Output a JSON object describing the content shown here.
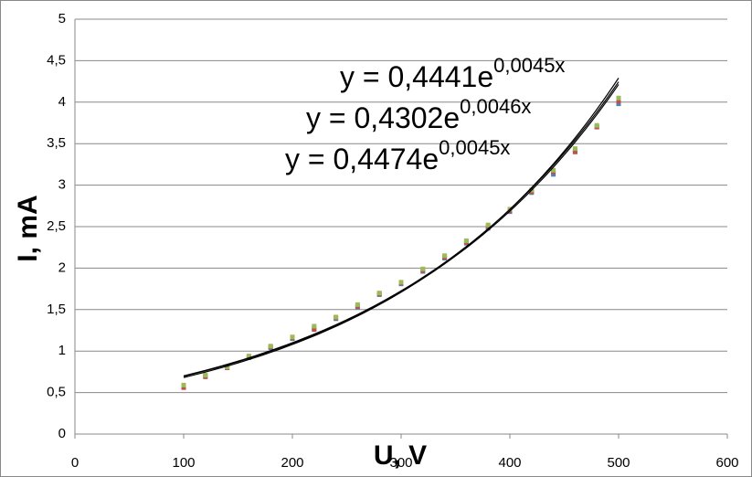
{
  "chart_data": {
    "type": "scatter",
    "x": [
      100,
      120,
      140,
      160,
      180,
      200,
      220,
      240,
      260,
      280,
      300,
      320,
      340,
      360,
      380,
      400,
      420,
      440,
      460,
      480,
      500
    ],
    "series": [
      {
        "color": "#4f81bd",
        "values": [
          0.57,
          0.7,
          0.8,
          0.92,
          1.04,
          1.15,
          1.27,
          1.39,
          1.53,
          1.68,
          1.81,
          1.96,
          2.12,
          2.3,
          2.48,
          2.68,
          2.91,
          3.13,
          3.41,
          3.7,
          3.98
        ]
      },
      {
        "color": "#c0504d",
        "values": [
          0.56,
          0.69,
          0.8,
          0.93,
          1.05,
          1.16,
          1.26,
          1.4,
          1.54,
          1.69,
          1.82,
          1.97,
          2.13,
          2.31,
          2.5,
          2.69,
          2.92,
          3.16,
          3.4,
          3.7,
          4.01
        ]
      },
      {
        "color": "#9bbb59",
        "values": [
          0.59,
          0.71,
          0.81,
          0.94,
          1.06,
          1.17,
          1.3,
          1.41,
          1.56,
          1.7,
          1.83,
          1.99,
          2.15,
          2.33,
          2.52,
          2.71,
          2.94,
          3.18,
          3.44,
          3.72,
          4.05
        ]
      }
    ],
    "trendlines": [
      {
        "a": 0.4441,
        "b": 0.0045,
        "x_range": [
          100,
          500
        ],
        "label": "y = 0,4441e",
        "exponent_label": "0,0045x"
      },
      {
        "a": 0.4302,
        "b": 0.0046,
        "x_range": [
          100,
          500
        ],
        "label": "y = 0,4302e",
        "exponent_label": "0,0046x"
      },
      {
        "a": 0.4474,
        "b": 0.0045,
        "x_range": [
          100,
          500
        ],
        "label": "y = 0,4474e",
        "exponent_label": "0,0045x"
      }
    ],
    "trendline_color": "#000000",
    "x_label": "U, V",
    "y_label": "I,  mA",
    "xlim": [
      0,
      600
    ],
    "xticks": [
      0,
      100,
      200,
      300,
      400,
      500,
      600
    ],
    "ylim": [
      0,
      5
    ],
    "yticks": [
      0,
      {
        "value": 0.5,
        "label": "0,5"
      },
      1,
      {
        "value": 1.5,
        "label": "1,5"
      },
      2,
      {
        "value": 2.5,
        "label": "2,5"
      },
      3,
      {
        "value": 3.5,
        "label": "3,5"
      },
      4,
      {
        "value": 4.5,
        "label": "4,5"
      },
      5
    ],
    "grid": true
  }
}
